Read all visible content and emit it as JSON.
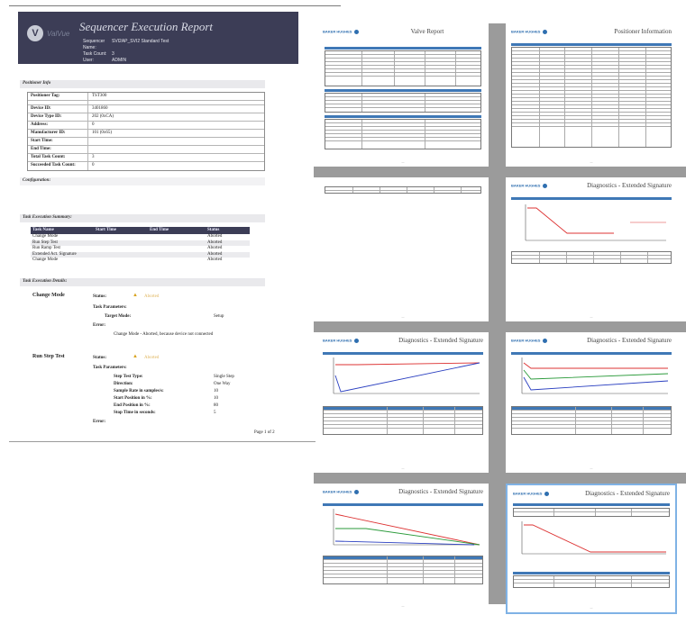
{
  "report": {
    "logo_letter": "V",
    "logo_text": "ValVue",
    "title": "Sequencer Execution Report",
    "meta": [
      {
        "label": "Sequencer Name:",
        "value": "SVI2AP_SVI2 Standard Test"
      },
      {
        "label": "Task Count:",
        "value": "3"
      },
      {
        "label": "User:",
        "value": "ADMIN"
      }
    ],
    "positioner_section": "Positioner Info",
    "positioner_rows": [
      {
        "label": "Positioner Tag:",
        "value": "TST300"
      },
      {
        "label": "Device ID:",
        "value": "3401860"
      },
      {
        "label": "Device Type ID:",
        "value": "202 (0xCA)"
      },
      {
        "label": "Address:",
        "value": "0"
      },
      {
        "label": "Manufacturer ID:",
        "value": "101 (0x65)"
      },
      {
        "label": "Start Time:",
        "value": ""
      },
      {
        "label": "End Time:",
        "value": ""
      },
      {
        "label": "Total Task Count:",
        "value": "3"
      },
      {
        "label": "Succeeded Task Count:",
        "value": "0"
      }
    ],
    "configuration_section": "Configuration:",
    "summary_section": "Task Execution Summary:",
    "summary_headers": [
      "Task Name",
      "Start Time",
      "End Time",
      "Status"
    ],
    "summary_rows": [
      [
        "Change Mode",
        "",
        "",
        "Aborted"
      ],
      [
        "Run Step Test",
        "",
        "",
        "Aborted"
      ],
      [
        "Run Ramp Test",
        "",
        "",
        "Aborted"
      ],
      [
        "Extended Act. Signature",
        "",
        "",
        "Aborted"
      ],
      [
        "Change Mode",
        "",
        "",
        "Aborted"
      ]
    ],
    "details_section": "Task Execution Details:",
    "details": {
      "task1_name": "Change Mode",
      "status_label": "Status:",
      "status_value": "Aborted",
      "task_params_label": "Task Parameters:",
      "target_mode_label": "Target Mode:",
      "target_mode_value": "Setup",
      "error_label": "Error:",
      "error_text": "Change Mode - Aborted, because device not connected",
      "task2_name": "Run Step Test",
      "params2": [
        {
          "label": "Step Test Type:",
          "value": "Single Step"
        },
        {
          "label": "Direction:",
          "value": "One Way"
        },
        {
          "label": "Sample Rate in samples/s:",
          "value": "10"
        },
        {
          "label": "Start Position in %:",
          "value": "10"
        },
        {
          "label": "End Position in %:",
          "value": "80"
        },
        {
          "label": "Stop Time in seconds:",
          "value": "5"
        }
      ]
    },
    "page_label": "Page 1 of 2"
  },
  "thumbnails": [
    {
      "title": "Valve Report",
      "brand": "BAKER HUGHES"
    },
    {
      "title": "Positioner Information",
      "brand": "BAKER HUGHES"
    },
    {
      "title": "",
      "brand": ""
    },
    {
      "title": "Diagnostics - Extended Signature",
      "brand": "BAKER HUGHES"
    },
    {
      "title": "Diagnostics - Extended Signature",
      "brand": "BAKER HUGHES"
    },
    {
      "title": "Diagnostics - Extended Signature",
      "brand": "BAKER HUGHES"
    },
    {
      "title": "Diagnostics - Extended Signature",
      "brand": "BAKER HUGHES"
    },
    {
      "title": "Diagnostics - Extended Signature",
      "brand": "BAKER HUGHES"
    }
  ],
  "colors": {
    "header_bg": "#3c3d56",
    "accent_blue": "#3f78b6",
    "warning": "#d8a321"
  }
}
